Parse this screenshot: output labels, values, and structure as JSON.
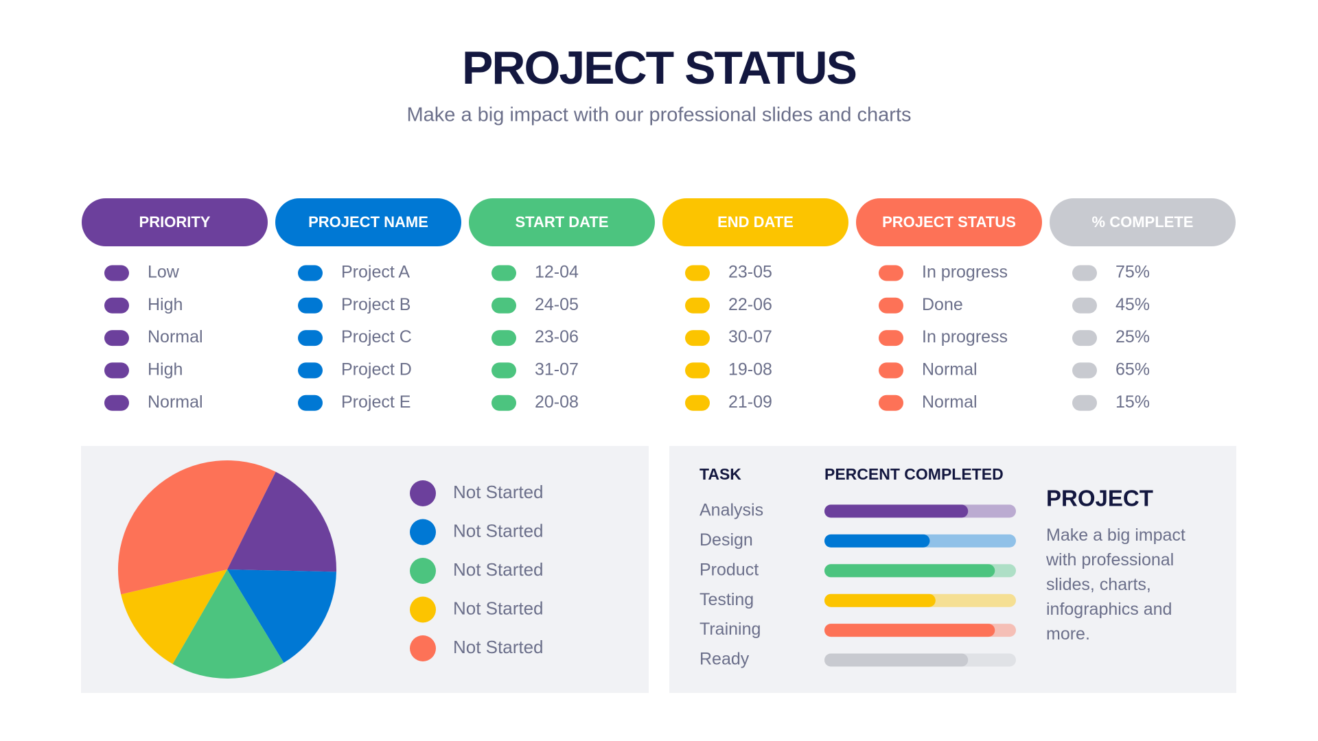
{
  "header": {
    "title": "PROJECT STATUS",
    "subtitle": "Make a big impact with our professional slides and charts"
  },
  "table": {
    "headers": [
      "PRIORITY",
      "PROJECT NAME",
      "START DATE",
      "END DATE",
      "PROJECT STATUS",
      "% COMPLETE"
    ],
    "header_colors": [
      "#6c409c",
      "#0078d4",
      "#4cc47f",
      "#fcc400",
      "#fd7257",
      "#c8cad0"
    ],
    "rows": [
      [
        "Low",
        "Project A",
        "12-04",
        "23-05",
        "In progress",
        "75%"
      ],
      [
        "High",
        "Project B",
        "24-05",
        "22-06",
        "Done",
        "45%"
      ],
      [
        "Normal",
        "Project C",
        "23-06",
        "30-07",
        "In progress",
        "25%"
      ],
      [
        "High",
        "Project D",
        "31-07",
        "19-08",
        "Normal",
        "65%"
      ],
      [
        "Normal",
        "Project E",
        "20-08",
        "21-09",
        "Normal",
        "15%"
      ]
    ]
  },
  "chart_data": [
    {
      "type": "pie",
      "categories": [
        "Not Started",
        "Not Started",
        "Not Started",
        "Not Started",
        "Not Started"
      ],
      "values": [
        18,
        16,
        17,
        13,
        36
      ],
      "colors": [
        "#6c409c",
        "#0078d4",
        "#4cc47f",
        "#fcc400",
        "#fd7257"
      ]
    },
    {
      "type": "bar",
      "category_header": "TASK",
      "value_header": "PERCENT COMPLETED",
      "categories": [
        "Analysis",
        "Design",
        "Product",
        "Testing",
        "Training",
        "Ready"
      ],
      "values": [
        75,
        55,
        89,
        58,
        89,
        75
      ],
      "colors": [
        "#6c409c",
        "#0078d4",
        "#4cc47f",
        "#fcc400",
        "#fd7257",
        "#c8cad0"
      ],
      "xlim": [
        0,
        100
      ]
    }
  ],
  "side": {
    "title": "PROJECT",
    "text": "Make a big impact with professional slides, charts, infographics and more."
  }
}
